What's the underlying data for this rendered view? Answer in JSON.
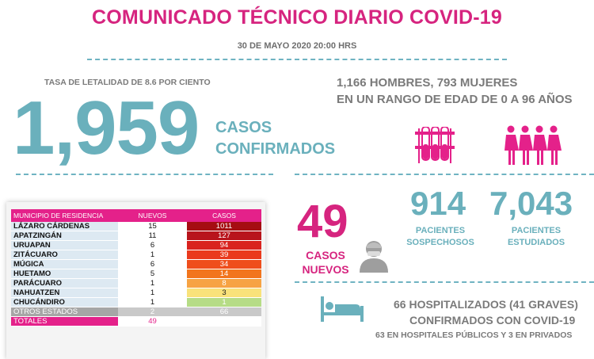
{
  "header": {
    "title": "COMUNICADO TÉCNICO DIARIO COVID-19",
    "date": "30  DE MAYO 2020 20:00 HRS"
  },
  "lethality": "TASA DE LETALIDAD DE 8.6 POR CIENTO",
  "confirmed": {
    "value": "1,959",
    "label_line1": "CASOS",
    "label_line2": "CONFIRMADOS"
  },
  "demographics": {
    "line1": "1,166 HOMBRES, 793 MUJERES",
    "line2": "EN UN RANGO DE EDAD DE 0 A 96 AÑOS"
  },
  "new_cases": {
    "value": "49",
    "label_line1": "CASOS",
    "label_line2": "NUEVOS"
  },
  "suspected": {
    "value": "914",
    "label_line1": "PACIENTES",
    "label_line2": "SOSPECHOSOS"
  },
  "studied": {
    "value": "7,043",
    "label_line1": "PACIENTES",
    "label_line2": "ESTUDIADOS"
  },
  "hospital": {
    "line1": "66 HOSPITALIZADOS (41 GRAVES)",
    "line2": "CONFIRMADOS CON COVID-19",
    "line3": "63 EN HOSPITALES PÚBLICOS Y 3 EN PRIVADOS"
  },
  "table": {
    "headers": [
      "MUNICIPIO DE RESIDENCIA",
      "NUEVOS",
      "CASOS"
    ],
    "rows": [
      {
        "municipio": "LÁZARO CÁRDENAS",
        "nuevos": "15",
        "casos": "1011",
        "color": "#a50d12"
      },
      {
        "municipio": "APATZINGÁN",
        "nuevos": "11",
        "casos": "127",
        "color": "#b8141c"
      },
      {
        "municipio": "URUAPAN",
        "nuevos": "6",
        "casos": "94",
        "color": "#d9231f"
      },
      {
        "municipio": "ZITÁCUARO",
        "nuevos": "1",
        "casos": "39",
        "color": "#ea3a1d"
      },
      {
        "municipio": "MÚGICA",
        "nuevos": "6",
        "casos": "34",
        "color": "#ef4e1c"
      },
      {
        "municipio": "HUETAMO",
        "nuevos": "5",
        "casos": "14",
        "color": "#f2751d"
      },
      {
        "municipio": "PARÁCUARO",
        "nuevos": "1",
        "casos": "8",
        "color": "#f7a343"
      },
      {
        "municipio": "NAHUATZEN",
        "nuevos": "1",
        "casos": "3",
        "color": "#f9e27a"
      },
      {
        "municipio": "CHUCÁNDIRO",
        "nuevos": "1",
        "casos": "1",
        "color": "#b6dc86"
      }
    ],
    "other": {
      "municipio": "OTROS ESTADOS",
      "nuevos": "2",
      "casos": "66"
    },
    "total": {
      "municipio": "TOTALES",
      "nuevos": "49",
      "casos": ""
    }
  },
  "colors": {
    "magenta": "#d6247f",
    "teal": "#6ab0bc",
    "gray": "#7a7a7a",
    "table_header": "#e4218a"
  },
  "icons": [
    "test-tubes-icon",
    "women-group-icon",
    "patient-icon",
    "hospital-bed-icon"
  ]
}
